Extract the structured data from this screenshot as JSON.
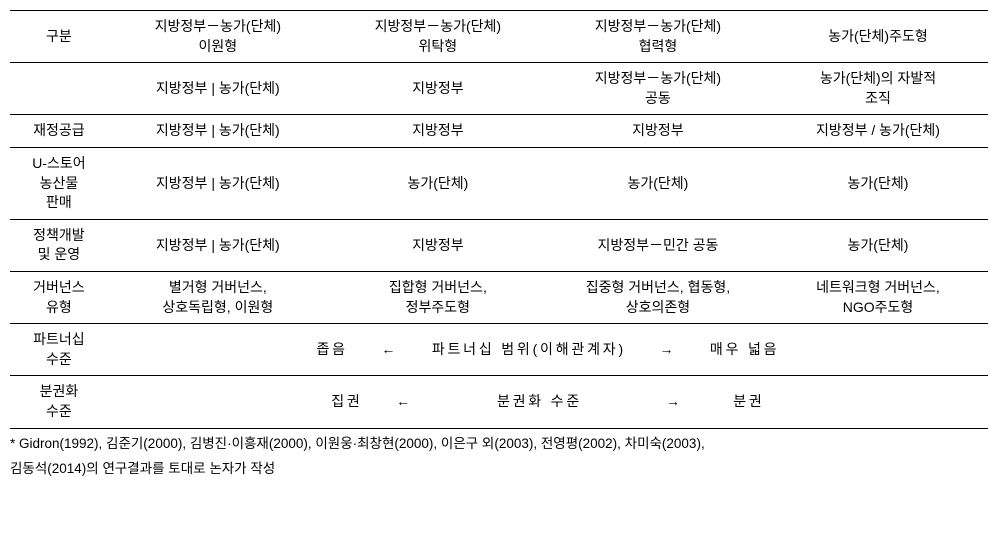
{
  "table": {
    "header": {
      "col0": "구분",
      "col1": "지방정부－농가(단체)\n이원형",
      "col2": "지방정부－농가(단체)\n위탁형",
      "col3": "지방정부－농가(단체)\n협력형",
      "col4": "농가(단체)주도형"
    },
    "rows": [
      {
        "label": "",
        "c1": "지방정부 | 농가(단체)",
        "c2": "지방정부",
        "c3": "지방정부－농가(단체)\n공동",
        "c4": "농가(단체)의 자발적\n조직"
      },
      {
        "label": "재정공급",
        "c1": "지방정부 | 농가(단체)",
        "c2": "지방정부",
        "c3": "지방정부",
        "c4": "지방정부 / 농가(단체)"
      },
      {
        "label": "U-스토어\n농산물\n판매",
        "c1": "지방정부 | 농가(단체)",
        "c2": "농가(단체)",
        "c3": "농가(단체)",
        "c4": "농가(단체)"
      },
      {
        "label": "정책개발\n및 운영",
        "c1": "지방정부 | 농가(단체)",
        "c2": "지방정부",
        "c3": "지방정부－민간 공동",
        "c4": "농가(단체)"
      },
      {
        "label": "거버넌스\n유형",
        "c1": "별거형 거버넌스,\n상호독립형, 이원형",
        "c2": "집합형 거버넌스,\n정부주도형",
        "c3": "집중형 거버넌스, 협동형,\n상호의존형",
        "c4": "네트워크형 거버넌스,\nNGO주도형"
      }
    ],
    "spanRows": [
      {
        "label": "파트너십\n수준",
        "content": "좁음　　←　　파트너십 범위(이해관계자)　　→　　매우 넓음"
      },
      {
        "label": "분권화\n수준",
        "content": "집권　　←　　　　　분권화 수준　　　　　→　　　분권"
      }
    ]
  },
  "footnote": {
    "line1": "* Gidron(1992), 김준기(2000), 김병진·이흥재(2000), 이원웅·최창현(2000), 이은구 외(2003), 전영평(2002), 차미숙(2003),",
    "line2": "김동석(2014)의 연구결과를 토대로 논자가 작성"
  }
}
